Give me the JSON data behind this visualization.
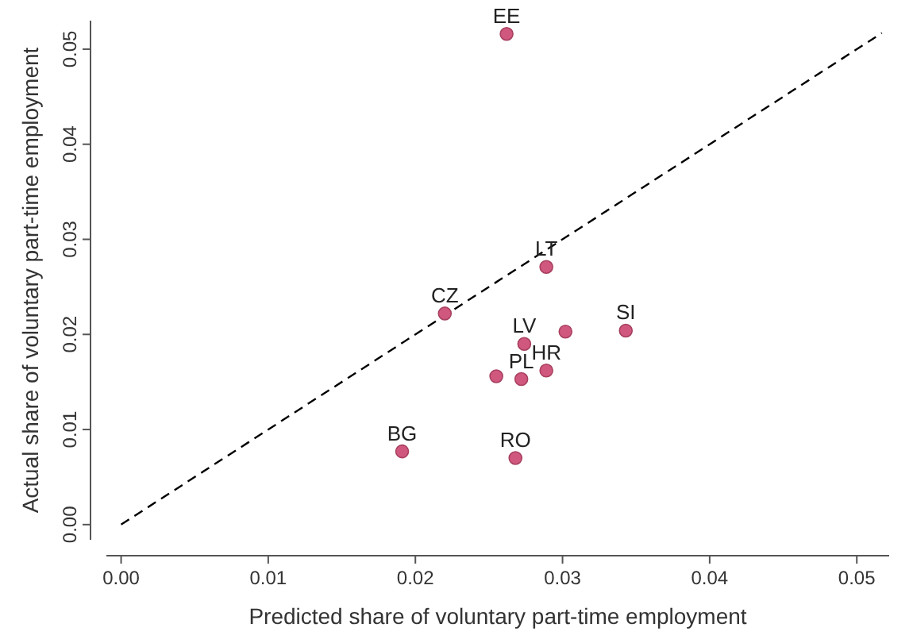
{
  "chart_data": {
    "type": "scatter",
    "xlabel": "Predicted share of voluntary part-time employment",
    "ylabel": "Actual share of voluntary part-time employment",
    "xlim": [
      -0.001,
      0.0522
    ],
    "ylim": [
      -0.0016,
      0.053
    ],
    "xticks": [
      {
        "value": 0,
        "label": "0.00"
      },
      {
        "value": 0.01,
        "label": "0.01"
      },
      {
        "value": 0.02,
        "label": "0.02"
      },
      {
        "value": 0.03,
        "label": "0.03"
      },
      {
        "value": 0.04,
        "label": "0.04"
      },
      {
        "value": 0.05,
        "label": "0.05"
      }
    ],
    "yticks": [
      {
        "value": 0,
        "label": "0.00"
      },
      {
        "value": 0.01,
        "label": "0.01"
      },
      {
        "value": 0.02,
        "label": "0.02"
      },
      {
        "value": 0.03,
        "label": "0.03"
      },
      {
        "value": 0.04,
        "label": "0.04"
      },
      {
        "value": 0.05,
        "label": "0.05"
      }
    ],
    "grid": false,
    "series": [
      {
        "type": "line",
        "color": "#000000",
        "line_style": "dashed",
        "x": [
          0,
          0.0517
        ],
        "values": [
          0,
          0.0517
        ]
      },
      {
        "color": "#d0587e",
        "marker": "circle",
        "x": [
          0.0262,
          0.0289,
          0.022,
          0.0274,
          0.0302,
          0.0343,
          0.0289,
          0.0272,
          0.0255,
          0.0191,
          0.0268
        ],
        "values": [
          0.0516,
          0.0271,
          0.0222,
          0.019,
          0.0203,
          0.0204,
          0.0162,
          0.0153,
          0.0156,
          0.0077,
          0.007
        ]
      }
    ],
    "annotations": [
      {
        "text": "EE",
        "x": 0.0262,
        "y": 0.0516
      },
      {
        "text": "LT",
        "x": 0.0289,
        "y": 0.0271
      },
      {
        "text": "CZ",
        "x": 0.022,
        "y": 0.0222
      },
      {
        "text": "LV",
        "x": 0.0274,
        "y": 0.019
      },
      {
        "text": "SI",
        "x": 0.0343,
        "y": 0.0204
      },
      {
        "text": "HR",
        "x": 0.0289,
        "y": 0.0162
      },
      {
        "text": "PL",
        "x": 0.0272,
        "y": 0.0153
      },
      {
        "text": "BG",
        "x": 0.0191,
        "y": 0.0077
      },
      {
        "text": "RO",
        "x": 0.0268,
        "y": 0.007
      }
    ]
  }
}
